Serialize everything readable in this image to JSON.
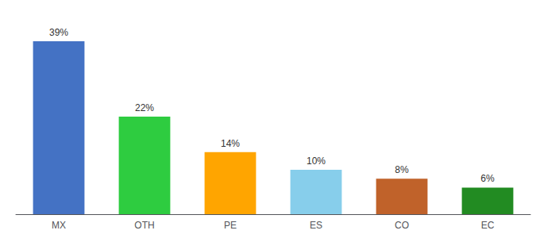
{
  "chart_data": {
    "type": "bar",
    "categories": [
      "MX",
      "OTH",
      "PE",
      "ES",
      "CO",
      "EC"
    ],
    "values": [
      39,
      22,
      14,
      10,
      8,
      6
    ],
    "value_labels": [
      "39%",
      "22%",
      "14%",
      "10%",
      "8%",
      "6%"
    ],
    "colors": [
      "#4472C4",
      "#2ECC40",
      "#FFA500",
      "#87CEEB",
      "#C0622A",
      "#228B22"
    ],
    "ylim": [
      0,
      44
    ],
    "data_labels": true,
    "tick_labels": "x",
    "grid": false
  }
}
